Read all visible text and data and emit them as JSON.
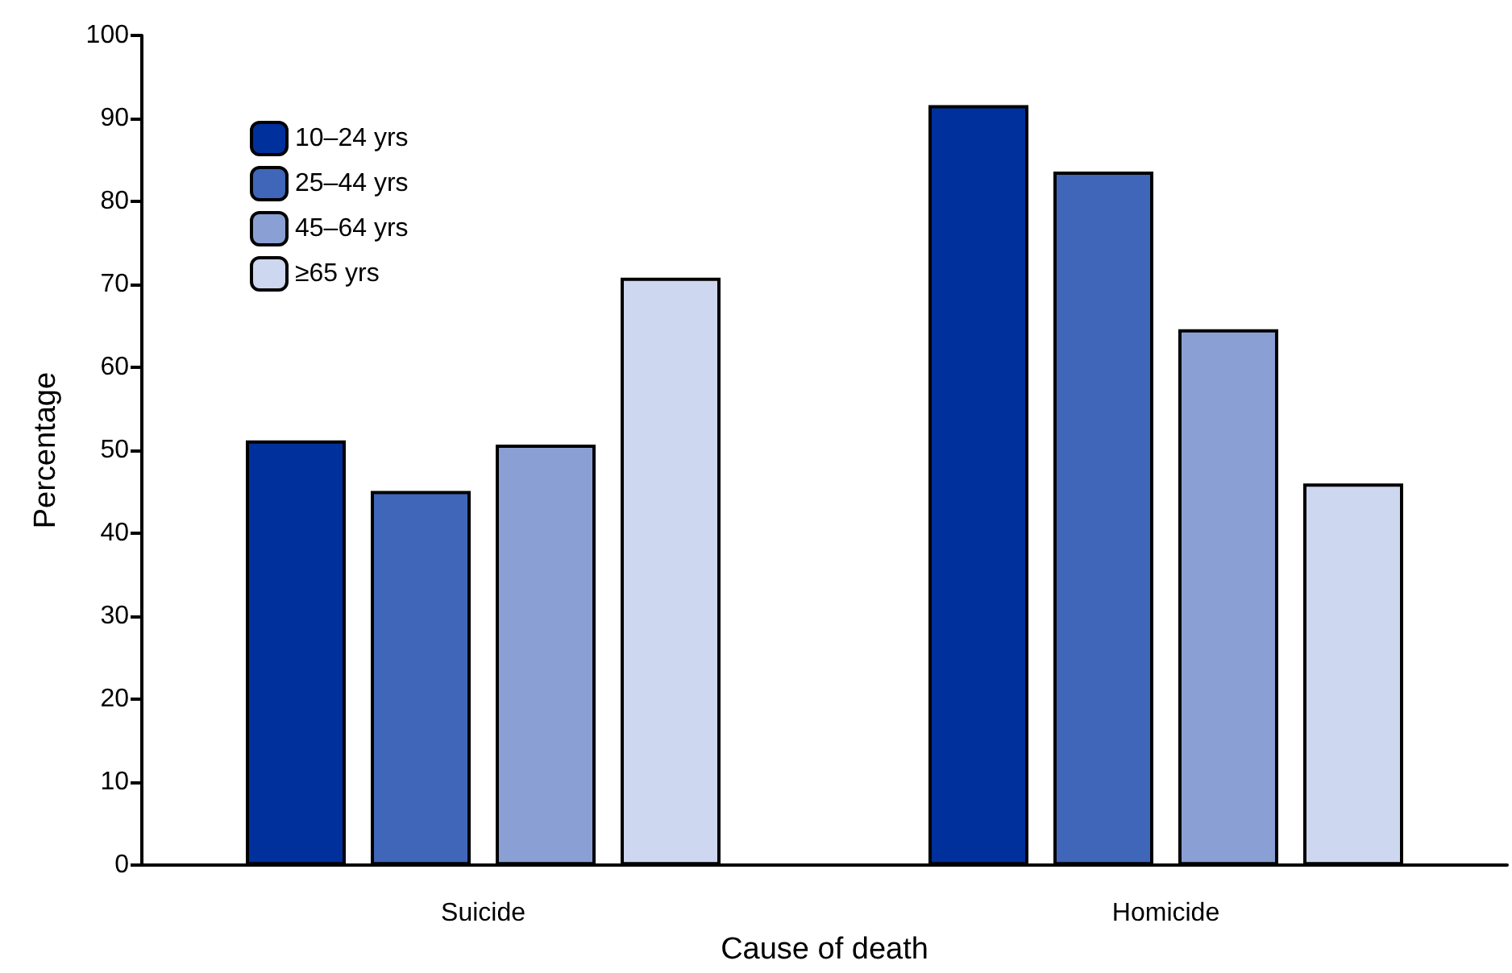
{
  "chart_data": {
    "type": "bar",
    "xlabel": "Cause of death",
    "ylabel": "Percentage",
    "categories": [
      "Suicide",
      "Homicide"
    ],
    "series": [
      {
        "name": "10–24 yrs",
        "color": "#00309b",
        "values": [
          51.2,
          91.6
        ]
      },
      {
        "name": "25–44 yrs",
        "color": "#3f66b8",
        "values": [
          45.1,
          83.6
        ]
      },
      {
        "name": "45–64 yrs",
        "color": "#8aa0d4",
        "values": [
          50.7,
          64.6
        ]
      },
      {
        "name": "≥65 yrs",
        "color": "#cdd7ef",
        "values": [
          70.8,
          46.0
        ]
      }
    ],
    "ylim": [
      0,
      100
    ],
    "yticks": [
      0,
      10,
      20,
      30,
      40,
      50,
      60,
      70,
      80,
      90,
      100
    ],
    "grid": false,
    "legend": "top left"
  }
}
